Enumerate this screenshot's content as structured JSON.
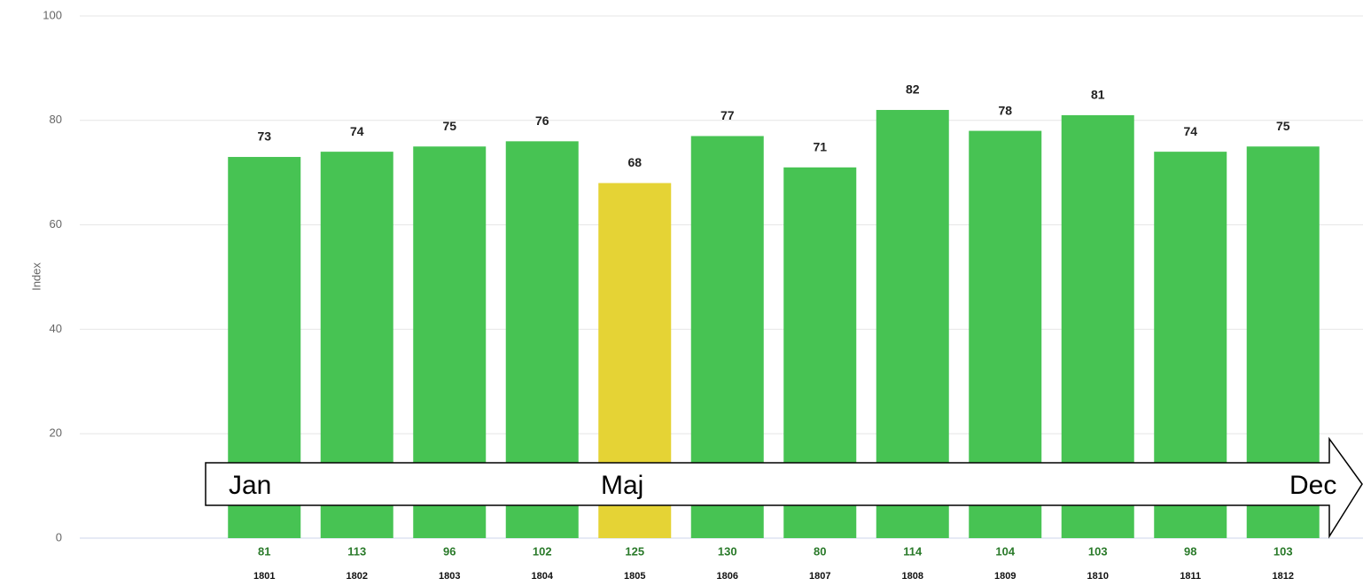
{
  "chart_data": {
    "type": "bar",
    "y_label": "Index",
    "categories": [
      "1801",
      "1802",
      "1803",
      "1804",
      "1805",
      "1806",
      "1807",
      "1808",
      "1809",
      "1810",
      "1811",
      "1812"
    ],
    "values": [
      73,
      74,
      75,
      76,
      68,
      77,
      71,
      82,
      78,
      81,
      74,
      75
    ],
    "colors": [
      "#47c353",
      "#47c353",
      "#47c353",
      "#47c353",
      "#e5d335",
      "#47c353",
      "#47c353",
      "#47c353",
      "#47c353",
      "#47c353",
      "#47c353",
      "#47c353"
    ],
    "sub_values": [
      81,
      113,
      96,
      102,
      125,
      130,
      80,
      114,
      104,
      103,
      98,
      103
    ],
    "ylim": [
      0,
      100
    ],
    "yticks": [
      0,
      20,
      40,
      60,
      80,
      100
    ],
    "grid": true,
    "arrow_labels": [
      "Jan",
      "Maj",
      "Dec"
    ]
  }
}
